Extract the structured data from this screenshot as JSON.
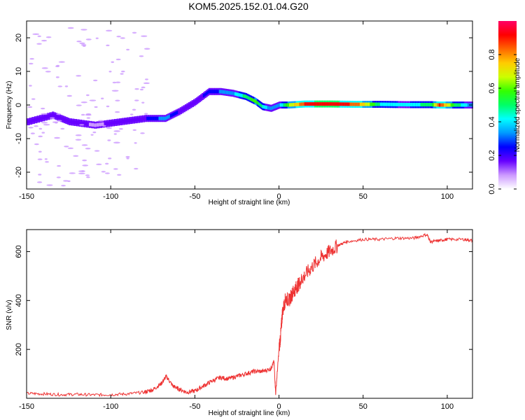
{
  "title": "KOM5.2025.152.01.04.G20",
  "chart_data": [
    {
      "type": "heatmap",
      "xlabel": "Height of straight line (km)",
      "ylabel": "Frequency (Hz)",
      "xlim": [
        -150,
        115
      ],
      "ylim": [
        -25,
        25
      ],
      "x_ticks": [
        -150,
        -100,
        -50,
        0,
        50,
        100
      ],
      "y_ticks": [
        -20,
        -10,
        0,
        10,
        20
      ],
      "colorbar": {
        "label": "Normalized spectral amplitude",
        "range": [
          0,
          1
        ],
        "ticks": [
          "0.0",
          "0.2",
          "0.4",
          "0.6",
          "0.8"
        ],
        "colors": [
          "#ffffff",
          "#cc99ff",
          "#6600ff",
          "#0000ff",
          "#0099ff",
          "#00ffff",
          "#00ff66",
          "#33ff00",
          "#ccff00",
          "#ffcc00",
          "#ff6600",
          "#ff0000",
          "#ff0066"
        ]
      },
      "ridge": [
        {
          "x": -150,
          "f": -5,
          "amp": 0.2
        },
        {
          "x": -135,
          "f": -3,
          "amp": 0.18
        },
        {
          "x": -125,
          "f": -5,
          "amp": 0.2
        },
        {
          "x": -110,
          "f": -6,
          "amp": 0.1
        },
        {
          "x": -95,
          "f": -5,
          "amp": 0.18
        },
        {
          "x": -80,
          "f": -4,
          "amp": 0.2
        },
        {
          "x": -68,
          "f": -4,
          "amp": 0.35
        },
        {
          "x": -60,
          "f": -2,
          "amp": 0.2
        },
        {
          "x": -50,
          "f": 1,
          "amp": 0.15
        },
        {
          "x": -42,
          "f": 4,
          "amp": 0.25
        },
        {
          "x": -35,
          "f": 4,
          "amp": 0.3
        },
        {
          "x": -28,
          "f": 3.5,
          "amp": 0.35
        },
        {
          "x": -20,
          "f": 2.5,
          "amp": 0.5
        },
        {
          "x": -14,
          "f": 1,
          "amp": 0.6
        },
        {
          "x": -10,
          "f": -0.5,
          "amp": 0.45
        },
        {
          "x": -5,
          "f": -1,
          "amp": 0.3
        },
        {
          "x": 0,
          "f": 0,
          "amp": 0.35
        },
        {
          "x": 5,
          "f": 0,
          "amp": 0.6
        },
        {
          "x": 15,
          "f": 0.3,
          "amp": 0.9
        },
        {
          "x": 30,
          "f": 0.3,
          "amp": 0.95
        },
        {
          "x": 45,
          "f": 0.2,
          "amp": 0.85
        },
        {
          "x": 60,
          "f": 0.2,
          "amp": 0.45
        },
        {
          "x": 75,
          "f": 0.1,
          "amp": 0.4
        },
        {
          "x": 90,
          "f": 0.1,
          "amp": 0.5
        },
        {
          "x": 95,
          "f": 0,
          "amp": 0.9
        },
        {
          "x": 105,
          "f": 0,
          "amp": 0.5
        },
        {
          "x": 115,
          "f": 0,
          "amp": 0.3
        }
      ]
    },
    {
      "type": "line",
      "xlabel": "Height of straight line (km)",
      "ylabel": "SNR (v/v)",
      "xlim": [
        -150,
        115
      ],
      "ylim": [
        0,
        690
      ],
      "x_ticks": [
        -150,
        -100,
        -50,
        0,
        50,
        100
      ],
      "y_ticks": [
        200,
        400,
        600
      ],
      "line_color": "#ee3333",
      "series": [
        {
          "x": [
            -150,
            -140,
            -130,
            -120,
            -110,
            -100,
            -90,
            -80,
            -75,
            -70,
            -67,
            -63,
            -60,
            -55,
            -50,
            -45,
            -40,
            -35,
            -30,
            -25,
            -20,
            -15,
            -10,
            -5,
            -3,
            -2,
            0,
            1,
            2,
            4,
            6,
            8,
            10,
            12,
            15,
            20,
            25,
            30,
            35,
            40,
            50,
            60,
            70,
            80,
            88,
            90,
            95,
            100,
            110,
            115
          ],
          "y": [
            20,
            18,
            15,
            16,
            14,
            15,
            18,
            25,
            35,
            60,
            90,
            50,
            40,
            25,
            30,
            50,
            70,
            85,
            80,
            90,
            100,
            110,
            110,
            120,
            150,
            20,
            200,
            260,
            350,
            410,
            400,
            430,
            450,
            470,
            500,
            540,
            575,
            600,
            625,
            640,
            650,
            650,
            655,
            655,
            670,
            640,
            645,
            650,
            650,
            645
          ]
        }
      ]
    }
  ]
}
